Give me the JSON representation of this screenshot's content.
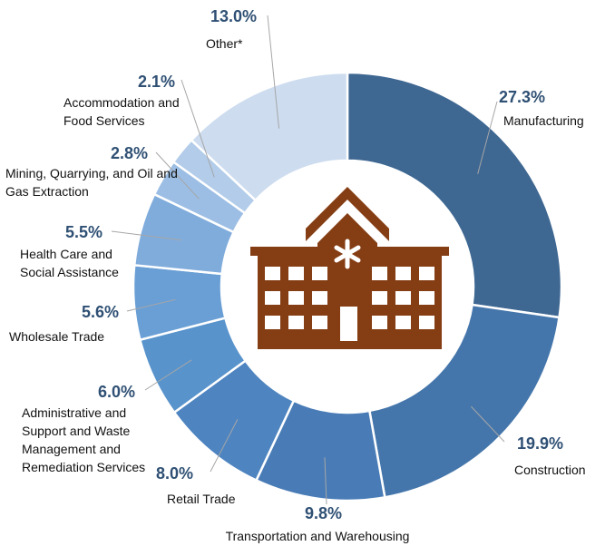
{
  "chart_data": {
    "type": "donut",
    "categories": [
      "Manufacturing",
      "Construction",
      "Transportation and Warehousing",
      "Retail Trade",
      "Administrative and Support and Waste Management and Remediation Services",
      "Wholesale Trade",
      "Health Care and Social Assistance",
      "Mining, Quarrying, and Oil and Gas Extraction",
      "Accommodation and Food Services",
      "Other*"
    ],
    "values": [
      27.3,
      19.9,
      9.8,
      8.0,
      6.0,
      5.6,
      5.5,
      2.8,
      2.1,
      13.0
    ],
    "value_labels": [
      "27.3%",
      "19.9%",
      "9.8%",
      "8.0%",
      "6.0%",
      "5.6%",
      "5.5%",
      "2.8%",
      "2.1%",
      "13.0%"
    ],
    "colors": [
      "#3e6792",
      "#4576ab",
      "#497cb6",
      "#4e84c0",
      "#5893cc",
      "#6a9fd5",
      "#80acdc",
      "#9cbee4",
      "#b2cce9",
      "#cddcef"
    ]
  }
}
